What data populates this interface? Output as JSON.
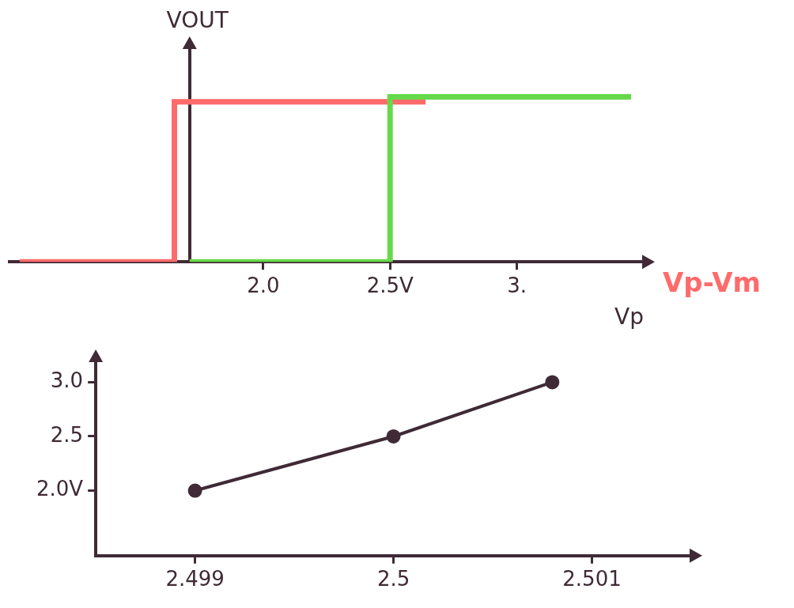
{
  "chart_data": [
    {
      "type": "line",
      "x_title": "Vp",
      "y_title": "VOUT",
      "annotations": [
        {
          "text": "Vp-Vm",
          "color": "#ff6b6b"
        }
      ],
      "xlim": [
        1.0,
        3.5
      ],
      "xticks": [
        {
          "value": 2,
          "label": "2.0"
        },
        {
          "value": 2.5,
          "label": "2.5V"
        },
        {
          "value": 3,
          "label": "3."
        }
      ],
      "x2lim": [
        -0.71,
        1.79
      ],
      "ylim": [
        0,
        1.3
      ],
      "tick_labels": "x",
      "grid": false,
      "series": [
        {
          "color": "#66d94a",
          "x": [
            1.71,
            2.5,
            2.5,
            3.45
          ],
          "values": [
            0,
            0,
            1,
            1
          ]
        },
        {
          "color": "#ff6b6b",
          "axis": "x2",
          "x": [
            -0.67,
            -0.06,
            -0.06,
            0.93
          ],
          "values": [
            0,
            0,
            0.97,
            0.97
          ]
        }
      ]
    },
    {
      "type": "line",
      "xlim": [
        2.4985,
        2.5015
      ],
      "xticks": [
        2.499,
        2.5,
        2.501
      ],
      "ylim": [
        1.4,
        3.2
      ],
      "yticks": [
        {
          "value": 2,
          "label": "2.0V"
        },
        2.5,
        {
          "value": 3,
          "label": "3.0"
        }
      ],
      "grid": false,
      "series": [
        {
          "color": "#3f2a36",
          "marker": "circle",
          "x": [
            2.499,
            2.5,
            2.5008
          ],
          "values": [
            2,
            2.5,
            3
          ]
        }
      ]
    }
  ]
}
